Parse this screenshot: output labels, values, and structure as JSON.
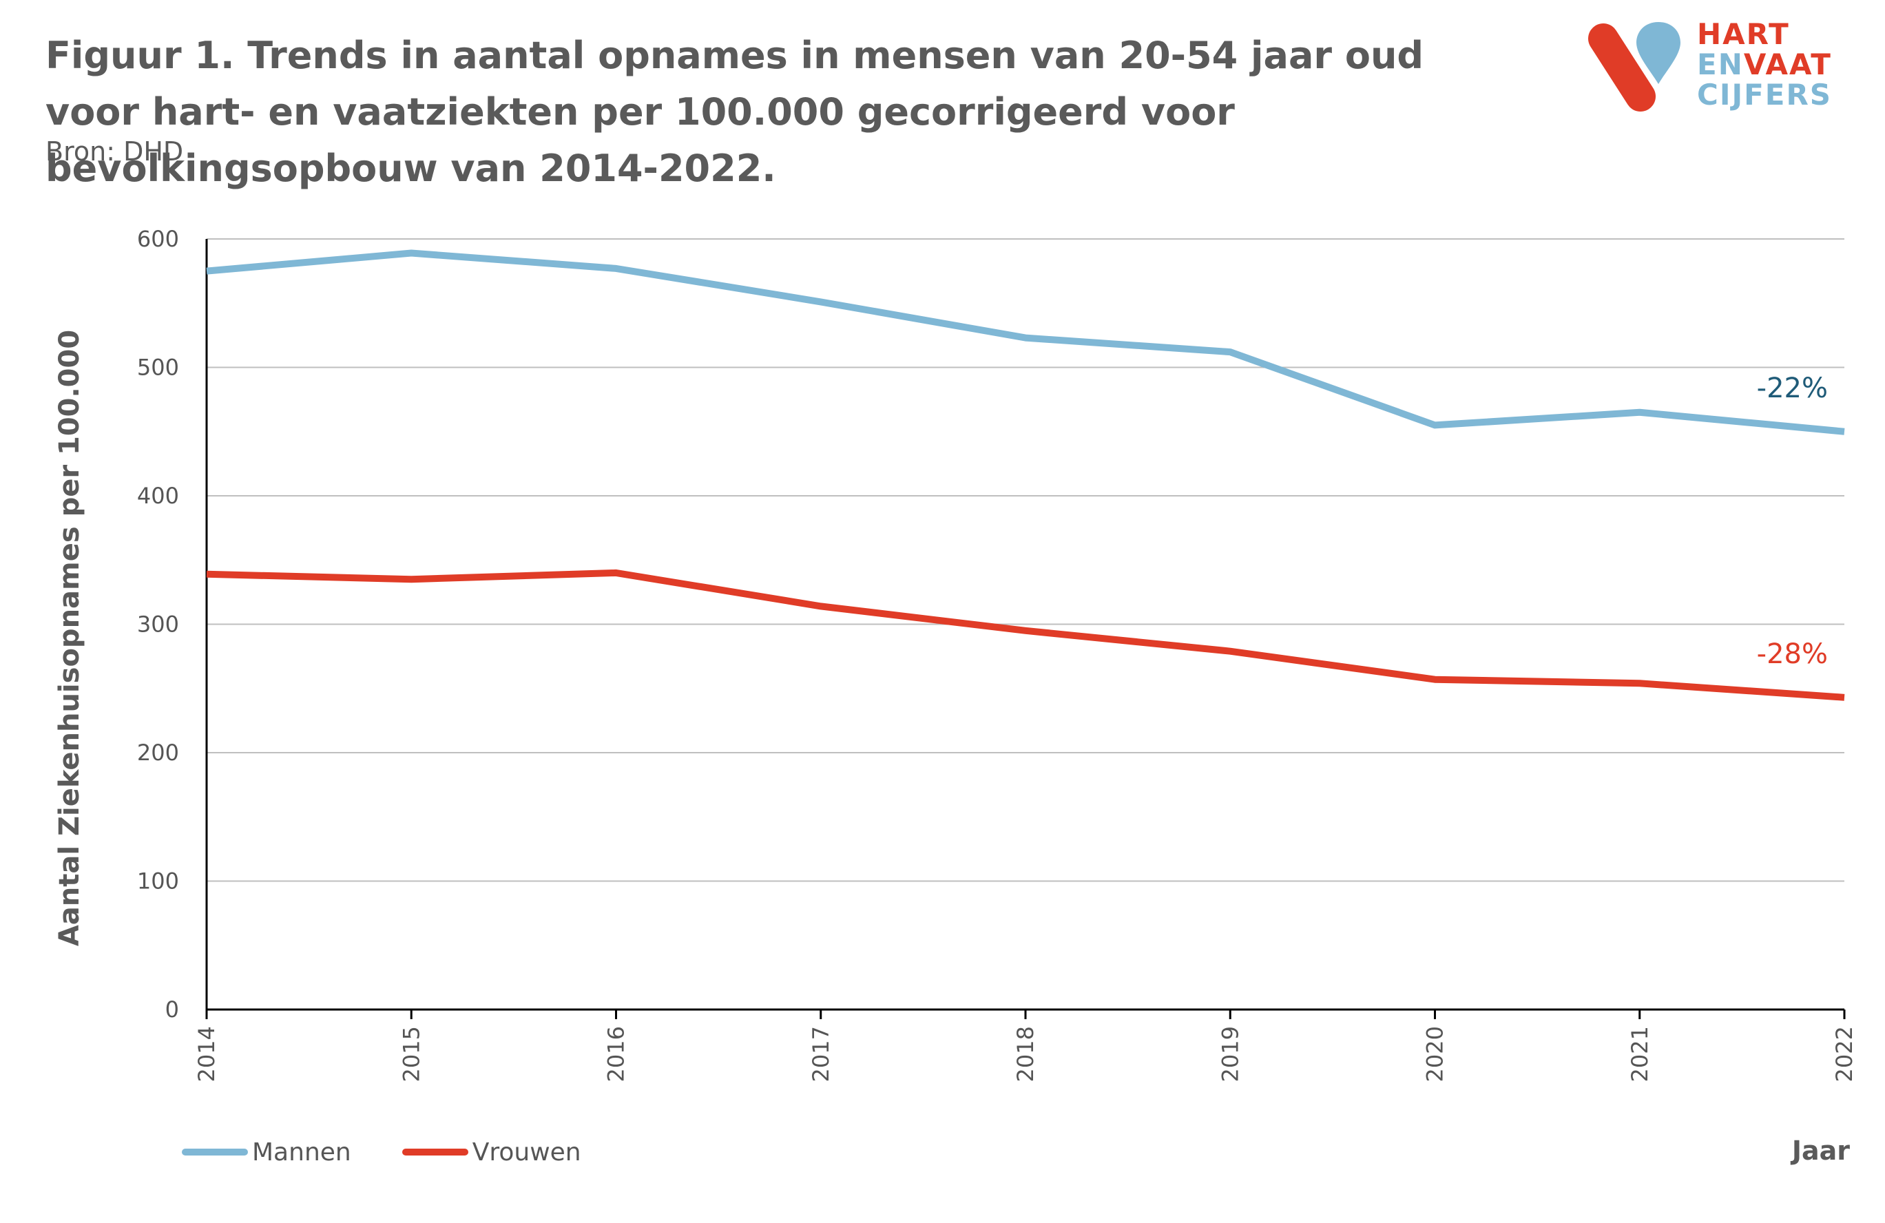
{
  "header": {
    "title": "Figuur 1. Trends in aantal opnames in mensen van 20-54 jaar oud voor hart- en vaatziekten per 100.000 gecorrigeerd voor bevolkingsopbouw van 2014-2022.",
    "source": "Bron: DHD"
  },
  "logo": {
    "line1": "HART",
    "line2a": "EN",
    "line2b": "VAAT",
    "line3": "CIJFERS",
    "colors": {
      "red": "#e03c27",
      "blue": "#7fb7d5"
    }
  },
  "chart_data": {
    "type": "line",
    "xlabel": "Jaar",
    "ylabel": "Aantal Ziekenhuisopnames per 100.000",
    "x": [
      "2014",
      "2015",
      "2016",
      "2017",
      "2018",
      "2019",
      "2020",
      "2021",
      "2022"
    ],
    "ylim": [
      0,
      600
    ],
    "yticks": [
      0,
      100,
      200,
      300,
      400,
      500,
      600
    ],
    "grid": true,
    "legend_position": "bottom-left",
    "series": [
      {
        "name": "Mannen",
        "color": "#7fb7d5",
        "values": [
          575,
          589,
          577,
          551,
          523,
          512,
          455,
          465,
          450
        ],
        "annotation": "-22%",
        "annotation_color": "#1f5b78"
      },
      {
        "name": "Vrouwen",
        "color": "#e03c27",
        "values": [
          339,
          335,
          340,
          314,
          295,
          279,
          257,
          254,
          243
        ],
        "annotation": "-28%",
        "annotation_color": "#e03c27"
      }
    ]
  }
}
